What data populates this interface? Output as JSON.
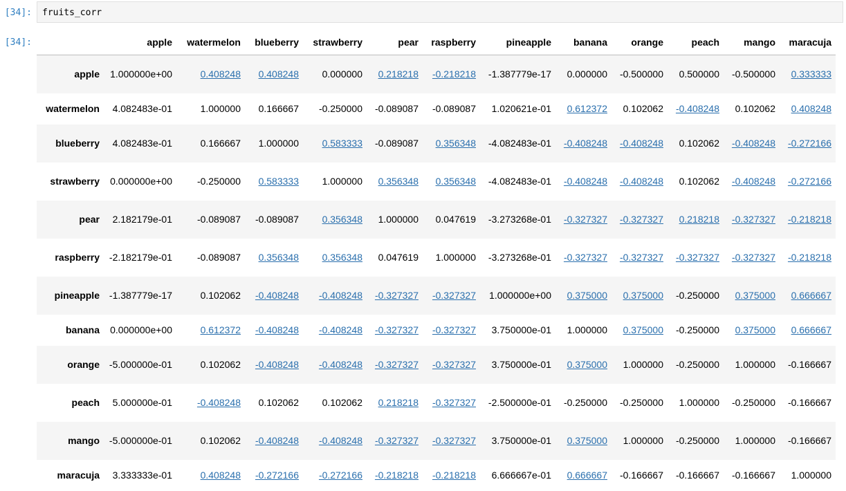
{
  "cell": {
    "in_prompt": "[34]:",
    "out_prompt": "[34]:",
    "code": "fruits_corr"
  },
  "table": {
    "columns": [
      "apple",
      "watermelon",
      "blueberry",
      "strawberry",
      "pear",
      "raspberry",
      "pineapple",
      "banana",
      "orange",
      "peach",
      "mango",
      "maracuja"
    ],
    "rows": [
      {
        "label": "apple",
        "cells": [
          {
            "v": "1.000000e+00",
            "link": false
          },
          {
            "v": "0.408248",
            "link": true
          },
          {
            "v": "0.408248",
            "link": true
          },
          {
            "v": "0.000000",
            "link": false
          },
          {
            "v": "0.218218",
            "link": true
          },
          {
            "v": "-0.218218",
            "link": true
          },
          {
            "v": "-1.387779e-17",
            "link": false
          },
          {
            "v": "0.000000",
            "link": false
          },
          {
            "v": "-0.500000",
            "link": false
          },
          {
            "v": "0.500000",
            "link": false
          },
          {
            "v": "-0.500000",
            "link": false
          },
          {
            "v": "0.333333",
            "link": true
          }
        ]
      },
      {
        "label": "watermelon",
        "cells": [
          {
            "v": "4.082483e-01",
            "link": false
          },
          {
            "v": "1.000000",
            "link": false
          },
          {
            "v": "0.166667",
            "link": false
          },
          {
            "v": "-0.250000",
            "link": false
          },
          {
            "v": "-0.089087",
            "link": false
          },
          {
            "v": "-0.089087",
            "link": false
          },
          {
            "v": "1.020621e-01",
            "link": false
          },
          {
            "v": "0.612372",
            "link": true
          },
          {
            "v": "0.102062",
            "link": false
          },
          {
            "v": "-0.408248",
            "link": true
          },
          {
            "v": "0.102062",
            "link": false
          },
          {
            "v": "0.408248",
            "link": true
          }
        ]
      },
      {
        "label": "blueberry",
        "cells": [
          {
            "v": "4.082483e-01",
            "link": false
          },
          {
            "v": "0.166667",
            "link": false
          },
          {
            "v": "1.000000",
            "link": false
          },
          {
            "v": "0.583333",
            "link": true
          },
          {
            "v": "-0.089087",
            "link": false
          },
          {
            "v": "0.356348",
            "link": true
          },
          {
            "v": "-4.082483e-01",
            "link": false
          },
          {
            "v": "-0.408248",
            "link": true
          },
          {
            "v": "-0.408248",
            "link": true
          },
          {
            "v": "0.102062",
            "link": false
          },
          {
            "v": "-0.408248",
            "link": true
          },
          {
            "v": "-0.272166",
            "link": true
          }
        ]
      },
      {
        "label": "strawberry",
        "cells": [
          {
            "v": "0.000000e+00",
            "link": false
          },
          {
            "v": "-0.250000",
            "link": false
          },
          {
            "v": "0.583333",
            "link": true
          },
          {
            "v": "1.000000",
            "link": false
          },
          {
            "v": "0.356348",
            "link": true
          },
          {
            "v": "0.356348",
            "link": true
          },
          {
            "v": "-4.082483e-01",
            "link": false
          },
          {
            "v": "-0.408248",
            "link": true
          },
          {
            "v": "-0.408248",
            "link": true
          },
          {
            "v": "0.102062",
            "link": false
          },
          {
            "v": "-0.408248",
            "link": true
          },
          {
            "v": "-0.272166",
            "link": true
          }
        ]
      },
      {
        "label": "pear",
        "cells": [
          {
            "v": "2.182179e-01",
            "link": false
          },
          {
            "v": "-0.089087",
            "link": false
          },
          {
            "v": "-0.089087",
            "link": false
          },
          {
            "v": "0.356348",
            "link": true
          },
          {
            "v": "1.000000",
            "link": false
          },
          {
            "v": "0.047619",
            "link": false
          },
          {
            "v": "-3.273268e-01",
            "link": false
          },
          {
            "v": "-0.327327",
            "link": true
          },
          {
            "v": "-0.327327",
            "link": true
          },
          {
            "v": "0.218218",
            "link": true
          },
          {
            "v": "-0.327327",
            "link": true
          },
          {
            "v": "-0.218218",
            "link": true
          }
        ]
      },
      {
        "label": "raspberry",
        "cells": [
          {
            "v": "-2.182179e-01",
            "link": false
          },
          {
            "v": "-0.089087",
            "link": false
          },
          {
            "v": "0.356348",
            "link": true
          },
          {
            "v": "0.356348",
            "link": true
          },
          {
            "v": "0.047619",
            "link": false
          },
          {
            "v": "1.000000",
            "link": false
          },
          {
            "v": "-3.273268e-01",
            "link": false
          },
          {
            "v": "-0.327327",
            "link": true
          },
          {
            "v": "-0.327327",
            "link": true
          },
          {
            "v": "-0.327327",
            "link": true
          },
          {
            "v": "-0.327327",
            "link": true
          },
          {
            "v": "-0.218218",
            "link": true
          }
        ]
      },
      {
        "label": "pineapple",
        "cells": [
          {
            "v": "-1.387779e-17",
            "link": false
          },
          {
            "v": "0.102062",
            "link": false
          },
          {
            "v": "-0.408248",
            "link": true
          },
          {
            "v": "-0.408248",
            "link": true
          },
          {
            "v": "-0.327327",
            "link": true
          },
          {
            "v": "-0.327327",
            "link": true
          },
          {
            "v": "1.000000e+00",
            "link": false
          },
          {
            "v": "0.375000",
            "link": true
          },
          {
            "v": "0.375000",
            "link": true
          },
          {
            "v": "-0.250000",
            "link": false
          },
          {
            "v": "0.375000",
            "link": true
          },
          {
            "v": "0.666667",
            "link": true
          }
        ]
      },
      {
        "label": "banana",
        "cells": [
          {
            "v": "0.000000e+00",
            "link": false
          },
          {
            "v": "0.612372",
            "link": true
          },
          {
            "v": "-0.408248",
            "link": true
          },
          {
            "v": "-0.408248",
            "link": true
          },
          {
            "v": "-0.327327",
            "link": true
          },
          {
            "v": "-0.327327",
            "link": true
          },
          {
            "v": "3.750000e-01",
            "link": false
          },
          {
            "v": "1.000000",
            "link": false
          },
          {
            "v": "0.375000",
            "link": true
          },
          {
            "v": "-0.250000",
            "link": false
          },
          {
            "v": "0.375000",
            "link": true
          },
          {
            "v": "0.666667",
            "link": true
          }
        ]
      },
      {
        "label": "orange",
        "cells": [
          {
            "v": "-5.000000e-01",
            "link": false
          },
          {
            "v": "0.102062",
            "link": false
          },
          {
            "v": "-0.408248",
            "link": true
          },
          {
            "v": "-0.408248",
            "link": true
          },
          {
            "v": "-0.327327",
            "link": true
          },
          {
            "v": "-0.327327",
            "link": true
          },
          {
            "v": "3.750000e-01",
            "link": false
          },
          {
            "v": "0.375000",
            "link": true
          },
          {
            "v": "1.000000",
            "link": false
          },
          {
            "v": "-0.250000",
            "link": false
          },
          {
            "v": "1.000000",
            "link": false
          },
          {
            "v": "-0.166667",
            "link": false
          }
        ]
      },
      {
        "label": "peach",
        "cells": [
          {
            "v": "5.000000e-01",
            "link": false
          },
          {
            "v": "-0.408248",
            "link": true
          },
          {
            "v": "0.102062",
            "link": false
          },
          {
            "v": "0.102062",
            "link": false
          },
          {
            "v": "0.218218",
            "link": true
          },
          {
            "v": "-0.327327",
            "link": true
          },
          {
            "v": "-2.500000e-01",
            "link": false
          },
          {
            "v": "-0.250000",
            "link": false
          },
          {
            "v": "-0.250000",
            "link": false
          },
          {
            "v": "1.000000",
            "link": false
          },
          {
            "v": "-0.250000",
            "link": false
          },
          {
            "v": "-0.166667",
            "link": false
          }
        ]
      },
      {
        "label": "mango",
        "cells": [
          {
            "v": "-5.000000e-01",
            "link": false
          },
          {
            "v": "0.102062",
            "link": false
          },
          {
            "v": "-0.408248",
            "link": true
          },
          {
            "v": "-0.408248",
            "link": true
          },
          {
            "v": "-0.327327",
            "link": true
          },
          {
            "v": "-0.327327",
            "link": true
          },
          {
            "v": "3.750000e-01",
            "link": false
          },
          {
            "v": "0.375000",
            "link": true
          },
          {
            "v": "1.000000",
            "link": false
          },
          {
            "v": "-0.250000",
            "link": false
          },
          {
            "v": "1.000000",
            "link": false
          },
          {
            "v": "-0.166667",
            "link": false
          }
        ]
      },
      {
        "label": "maracuja",
        "cells": [
          {
            "v": "3.333333e-01",
            "link": false
          },
          {
            "v": "0.408248",
            "link": true
          },
          {
            "v": "-0.272166",
            "link": true
          },
          {
            "v": "-0.272166",
            "link": true
          },
          {
            "v": "-0.218218",
            "link": true
          },
          {
            "v": "-0.218218",
            "link": true
          },
          {
            "v": "6.666667e-01",
            "link": false
          },
          {
            "v": "0.666667",
            "link": true
          },
          {
            "v": "-0.166667",
            "link": false
          },
          {
            "v": "-0.166667",
            "link": false
          },
          {
            "v": "-0.166667",
            "link": false
          },
          {
            "v": "1.000000",
            "link": false
          }
        ]
      }
    ]
  },
  "colors": {
    "prompt": "#307fc1",
    "link": "#2a6fad",
    "stripe": "#f5f5f5"
  }
}
